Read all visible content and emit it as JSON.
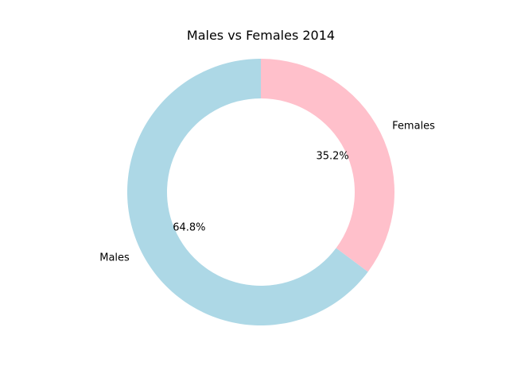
{
  "chart_data": {
    "type": "pie",
    "title": "Males vs Females  2014",
    "slices": [
      {
        "label": "Females",
        "value": 35.2,
        "color": "#ffc0cb",
        "pct_label": "35.2%"
      },
      {
        "label": "Males",
        "value": 64.8,
        "color": "#add8e6",
        "pct_label": "64.8%"
      }
    ],
    "start_angle_deg": 90,
    "counterclockwise": false,
    "donut": true
  }
}
